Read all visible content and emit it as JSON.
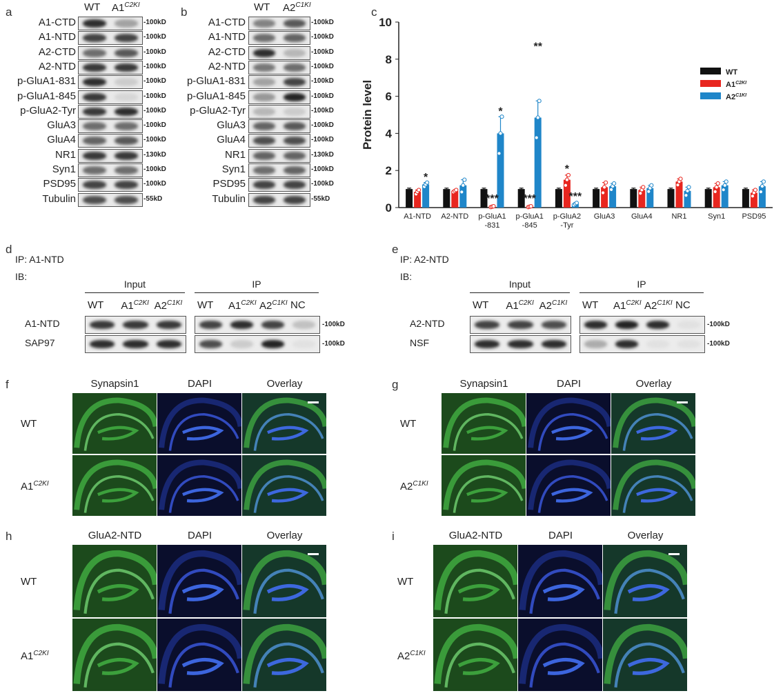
{
  "panels": {
    "a": "a",
    "b": "b",
    "c": "c",
    "d": "d",
    "e": "e",
    "f": "f",
    "g": "g",
    "h": "h",
    "i": "i"
  },
  "blot_a": {
    "lanes": [
      "WT",
      "A1",
      "C2KI"
    ],
    "rows": [
      {
        "label": "A1-CTD",
        "kd": "-100kD",
        "wt": 0.9,
        "mut": 0.35
      },
      {
        "label": "A1-NTD",
        "kd": "-100kD",
        "wt": 0.8,
        "mut": 0.8
      },
      {
        "label": "A2-CTD",
        "kd": "-100kD",
        "wt": 0.6,
        "mut": 0.7
      },
      {
        "label": "A2-NTD",
        "kd": "-100kD",
        "wt": 0.85,
        "mut": 0.85
      },
      {
        "label": "p-GluA1-831",
        "kd": "-100kD",
        "wt": 0.9,
        "mut": 0.15
      },
      {
        "label": "p-GluA1-845",
        "kd": "-100kD",
        "wt": 0.85,
        "mut": 0.1
      },
      {
        "label": "p-GluA2-Tyr",
        "kd": "-100kD",
        "wt": 0.85,
        "mut": 0.9
      },
      {
        "label": "GluA3",
        "kd": "-100kD",
        "wt": 0.6,
        "mut": 0.6
      },
      {
        "label": "GluA4",
        "kd": "-100kD",
        "wt": 0.65,
        "mut": 0.7
      },
      {
        "label": "NR1",
        "kd": "-130kD",
        "wt": 0.85,
        "mut": 0.85
      },
      {
        "label": "Syn1",
        "kd": "-100kD",
        "wt": 0.6,
        "mut": 0.6
      },
      {
        "label": "PSD95",
        "kd": "-100kD",
        "wt": 0.8,
        "mut": 0.8
      },
      {
        "label": "Tubulin",
        "kd": "-55kD",
        "wt": 0.75,
        "mut": 0.75
      }
    ]
  },
  "blot_b": {
    "lanes": [
      "WT",
      "A2",
      "C1KI"
    ],
    "rows": [
      {
        "label": "A1-CTD",
        "kd": "-100kD",
        "wt": 0.5,
        "mut": 0.7
      },
      {
        "label": "A1-NTD",
        "kd": "-100kD",
        "wt": 0.6,
        "mut": 0.65
      },
      {
        "label": "A2-CTD",
        "kd": "-100kD",
        "wt": 0.9,
        "mut": 0.25
      },
      {
        "label": "A2-NTD",
        "kd": "-100kD",
        "wt": 0.55,
        "mut": 0.6
      },
      {
        "label": "p-GluA1-831",
        "kd": "-100kD",
        "wt": 0.35,
        "mut": 0.8
      },
      {
        "label": "p-GluA1-845",
        "kd": "-100kD",
        "wt": 0.4,
        "mut": 0.95
      },
      {
        "label": "p-GluA2-Tyr",
        "kd": "-100kD",
        "wt": 0.25,
        "mut": 0.15
      },
      {
        "label": "GluA3",
        "kd": "-100kD",
        "wt": 0.65,
        "mut": 0.7
      },
      {
        "label": "GluA4",
        "kd": "-100kD",
        "wt": 0.75,
        "mut": 0.75
      },
      {
        "label": "NR1",
        "kd": "-130kD",
        "wt": 0.65,
        "mut": 0.65
      },
      {
        "label": "Syn1",
        "kd": "-100kD",
        "wt": 0.6,
        "mut": 0.65
      },
      {
        "label": "PSD95",
        "kd": "-100kD",
        "wt": 0.8,
        "mut": 0.8
      },
      {
        "label": "Tubulin",
        "kd": "-55kD",
        "wt": 0.8,
        "mut": 0.8
      }
    ]
  },
  "chart_data": {
    "type": "bar",
    "ylabel": "Protein level",
    "ylim": [
      0,
      10
    ],
    "yticks": [
      0,
      2,
      4,
      6,
      8,
      10
    ],
    "categories": [
      "A1-NTD",
      "A2-NTD",
      "p-GluA1\n-831",
      "p-GluA1\n-845",
      "p-GluA2\n-Tyr",
      "GluA3",
      "GluA4",
      "NR1",
      "Syn1",
      "PSD95"
    ],
    "legend_position": "top-right",
    "series": [
      {
        "name": "WT",
        "color": "#111111",
        "values": [
          1,
          1,
          1,
          1,
          1,
          1,
          1,
          1,
          1,
          1
        ],
        "errors": [
          0.05,
          0.05,
          0.05,
          0.05,
          0.05,
          0.05,
          0.05,
          0.05,
          0.05,
          0.05
        ]
      },
      {
        "name": "A1",
        "name_sup": "C2KI",
        "color": "#e8261f",
        "values": [
          0.85,
          0.9,
          0.05,
          0.05,
          1.5,
          1.1,
          0.95,
          1.4,
          1.1,
          0.8
        ],
        "errors": [
          0.1,
          0.05,
          0.02,
          0.02,
          0.25,
          0.25,
          0.15,
          0.15,
          0.2,
          0.15
        ]
      },
      {
        "name": "A2",
        "name_sup": "C1KI",
        "color": "#1f86c9",
        "values": [
          1.25,
          1.2,
          4.0,
          4.85,
          0.2,
          1.15,
          1.05,
          0.9,
          1.2,
          1.15
        ],
        "errors": [
          0.1,
          0.3,
          0.9,
          0.9,
          0.05,
          0.15,
          0.15,
          0.2,
          0.2,
          0.25
        ]
      }
    ],
    "annotations": [
      {
        "category": 0,
        "series": 2,
        "text": "*",
        "y": 1.45
      },
      {
        "category": 2,
        "series": 1,
        "text": "***",
        "y": 0.3
      },
      {
        "category": 2,
        "series": 2,
        "text": "*",
        "y": 5.0
      },
      {
        "category": 3,
        "series": 1,
        "text": "***",
        "y": 0.3
      },
      {
        "category": 3,
        "series": 2,
        "text": "**",
        "y": 8.5
      },
      {
        "category": 4,
        "series": 1,
        "text": "*",
        "y": 1.9
      },
      {
        "category": 4,
        "series": 2,
        "text": "***",
        "y": 0.4
      }
    ]
  },
  "ip_d": {
    "ip": "IP: A1-NTD",
    "ib": "IB:",
    "input": "Input",
    "ipgroup": "IP",
    "lanes_input": [
      [
        "WT",
        ""
      ],
      [
        "A1",
        "C2KI"
      ],
      [
        "A2",
        "C1KI"
      ]
    ],
    "lanes_ip": [
      [
        "WT",
        ""
      ],
      [
        "A1",
        "C2KI"
      ],
      [
        "A2",
        "C1KI"
      ],
      [
        "NC",
        ""
      ]
    ],
    "rows": [
      {
        "label": "A1-NTD",
        "kd": "-100kD",
        "input": [
          0.85,
          0.85,
          0.85
        ],
        "ip": [
          0.8,
          0.9,
          0.8,
          0.2
        ]
      },
      {
        "label": "SAP97",
        "kd": "-100kD",
        "input": [
          0.9,
          0.9,
          0.9
        ],
        "ip": [
          0.75,
          0.15,
          0.95,
          0.05
        ]
      }
    ]
  },
  "ip_e": {
    "ip": "IP: A2-NTD",
    "ib": "IB:",
    "input": "Input",
    "ipgroup": "IP",
    "lanes_input": [
      [
        "WT",
        ""
      ],
      [
        "A1",
        "C2KI"
      ],
      [
        "A2",
        "C1KI"
      ]
    ],
    "lanes_ip": [
      [
        "WT",
        ""
      ],
      [
        "A1",
        "C2KI"
      ],
      [
        "A2",
        "C1KI"
      ],
      [
        "NC",
        ""
      ]
    ],
    "rows": [
      {
        "label": "A2-NTD",
        "kd": "-100kD",
        "input": [
          0.8,
          0.8,
          0.75
        ],
        "ip": [
          0.9,
          0.95,
          0.9,
          0.05
        ]
      },
      {
        "label": "NSF",
        "kd": "-100kD",
        "input": [
          0.9,
          0.9,
          0.9
        ],
        "ip": [
          0.3,
          0.9,
          0.05,
          0.05
        ]
      }
    ]
  },
  "micro_f": {
    "cols": [
      "Synapsin1",
      "DAPI",
      "Overlay"
    ],
    "rows": [
      [
        "WT",
        ""
      ],
      [
        "A1",
        "C2KI"
      ]
    ]
  },
  "micro_g": {
    "cols": [
      "Synapsin1",
      "DAPI",
      "Overlay"
    ],
    "rows": [
      [
        "WT",
        ""
      ],
      [
        "A2",
        "C1KI"
      ]
    ]
  },
  "micro_h": {
    "cols": [
      "GluA2-NTD",
      "DAPI",
      "Overlay"
    ],
    "rows": [
      [
        "WT",
        ""
      ],
      [
        "A1",
        "C2KI"
      ]
    ]
  },
  "micro_i": {
    "cols": [
      "GluA2-NTD",
      "DAPI",
      "Overlay"
    ],
    "rows": [
      [
        "WT",
        ""
      ],
      [
        "A2",
        "C1KI"
      ]
    ]
  }
}
